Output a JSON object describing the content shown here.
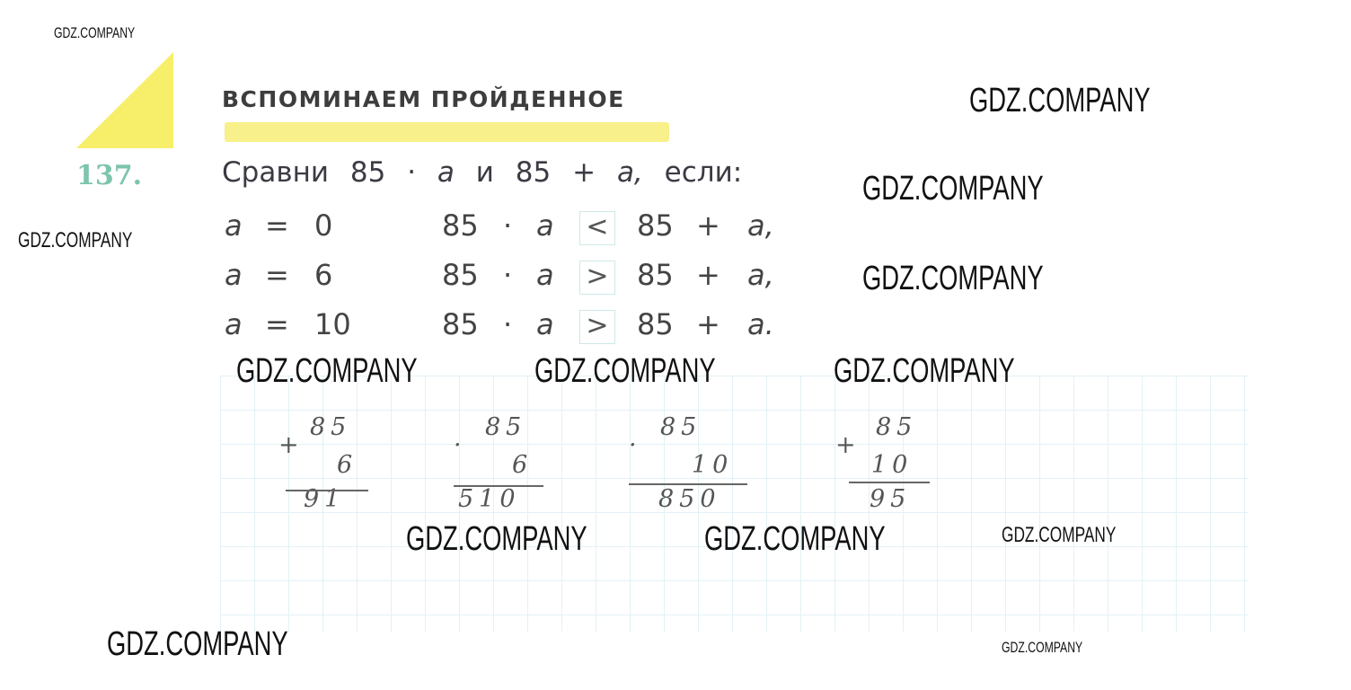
{
  "header": {
    "title": "ВСПОМИНАЕМ ПРОЙДЕННОЕ"
  },
  "task": {
    "number": "137.",
    "prompt": [
      "Сравни",
      "85",
      "·",
      "a",
      "и",
      "85",
      "+",
      "a,",
      "если:"
    ],
    "rows": [
      {
        "var": "a",
        "eq": "=",
        "value": "0",
        "left": "85",
        "dot": "·",
        "a": "a",
        "sign": "<",
        "right": "85",
        "plus": "+",
        "end": "a,"
      },
      {
        "var": "a",
        "eq": "=",
        "value": "6",
        "left": "85",
        "dot": "·",
        "a": "a",
        "sign": ">",
        "right": "85",
        "plus": "+",
        "end": "a,"
      },
      {
        "var": "a",
        "eq": "=",
        "value": "10",
        "left": "85",
        "dot": "·",
        "a": "a",
        "sign": ">",
        "right": "85",
        "plus": "+",
        "end": "a."
      }
    ]
  },
  "calculations": [
    {
      "op": "+",
      "top": "85",
      "bottom": "6",
      "result": "91"
    },
    {
      "op": "·",
      "top": "85",
      "bottom": "6",
      "result": "510"
    },
    {
      "op": "·",
      "top": "85",
      "bottom": "10",
      "result": "850"
    },
    {
      "op": "+",
      "top": "85",
      "bottom": "10",
      "result": "95"
    }
  ],
  "watermark": "GDZ.COMPANY",
  "colors": {
    "highlight": "#f7ef6a",
    "task_number": "#7cc4ae",
    "grid": "#e3f1f6"
  }
}
